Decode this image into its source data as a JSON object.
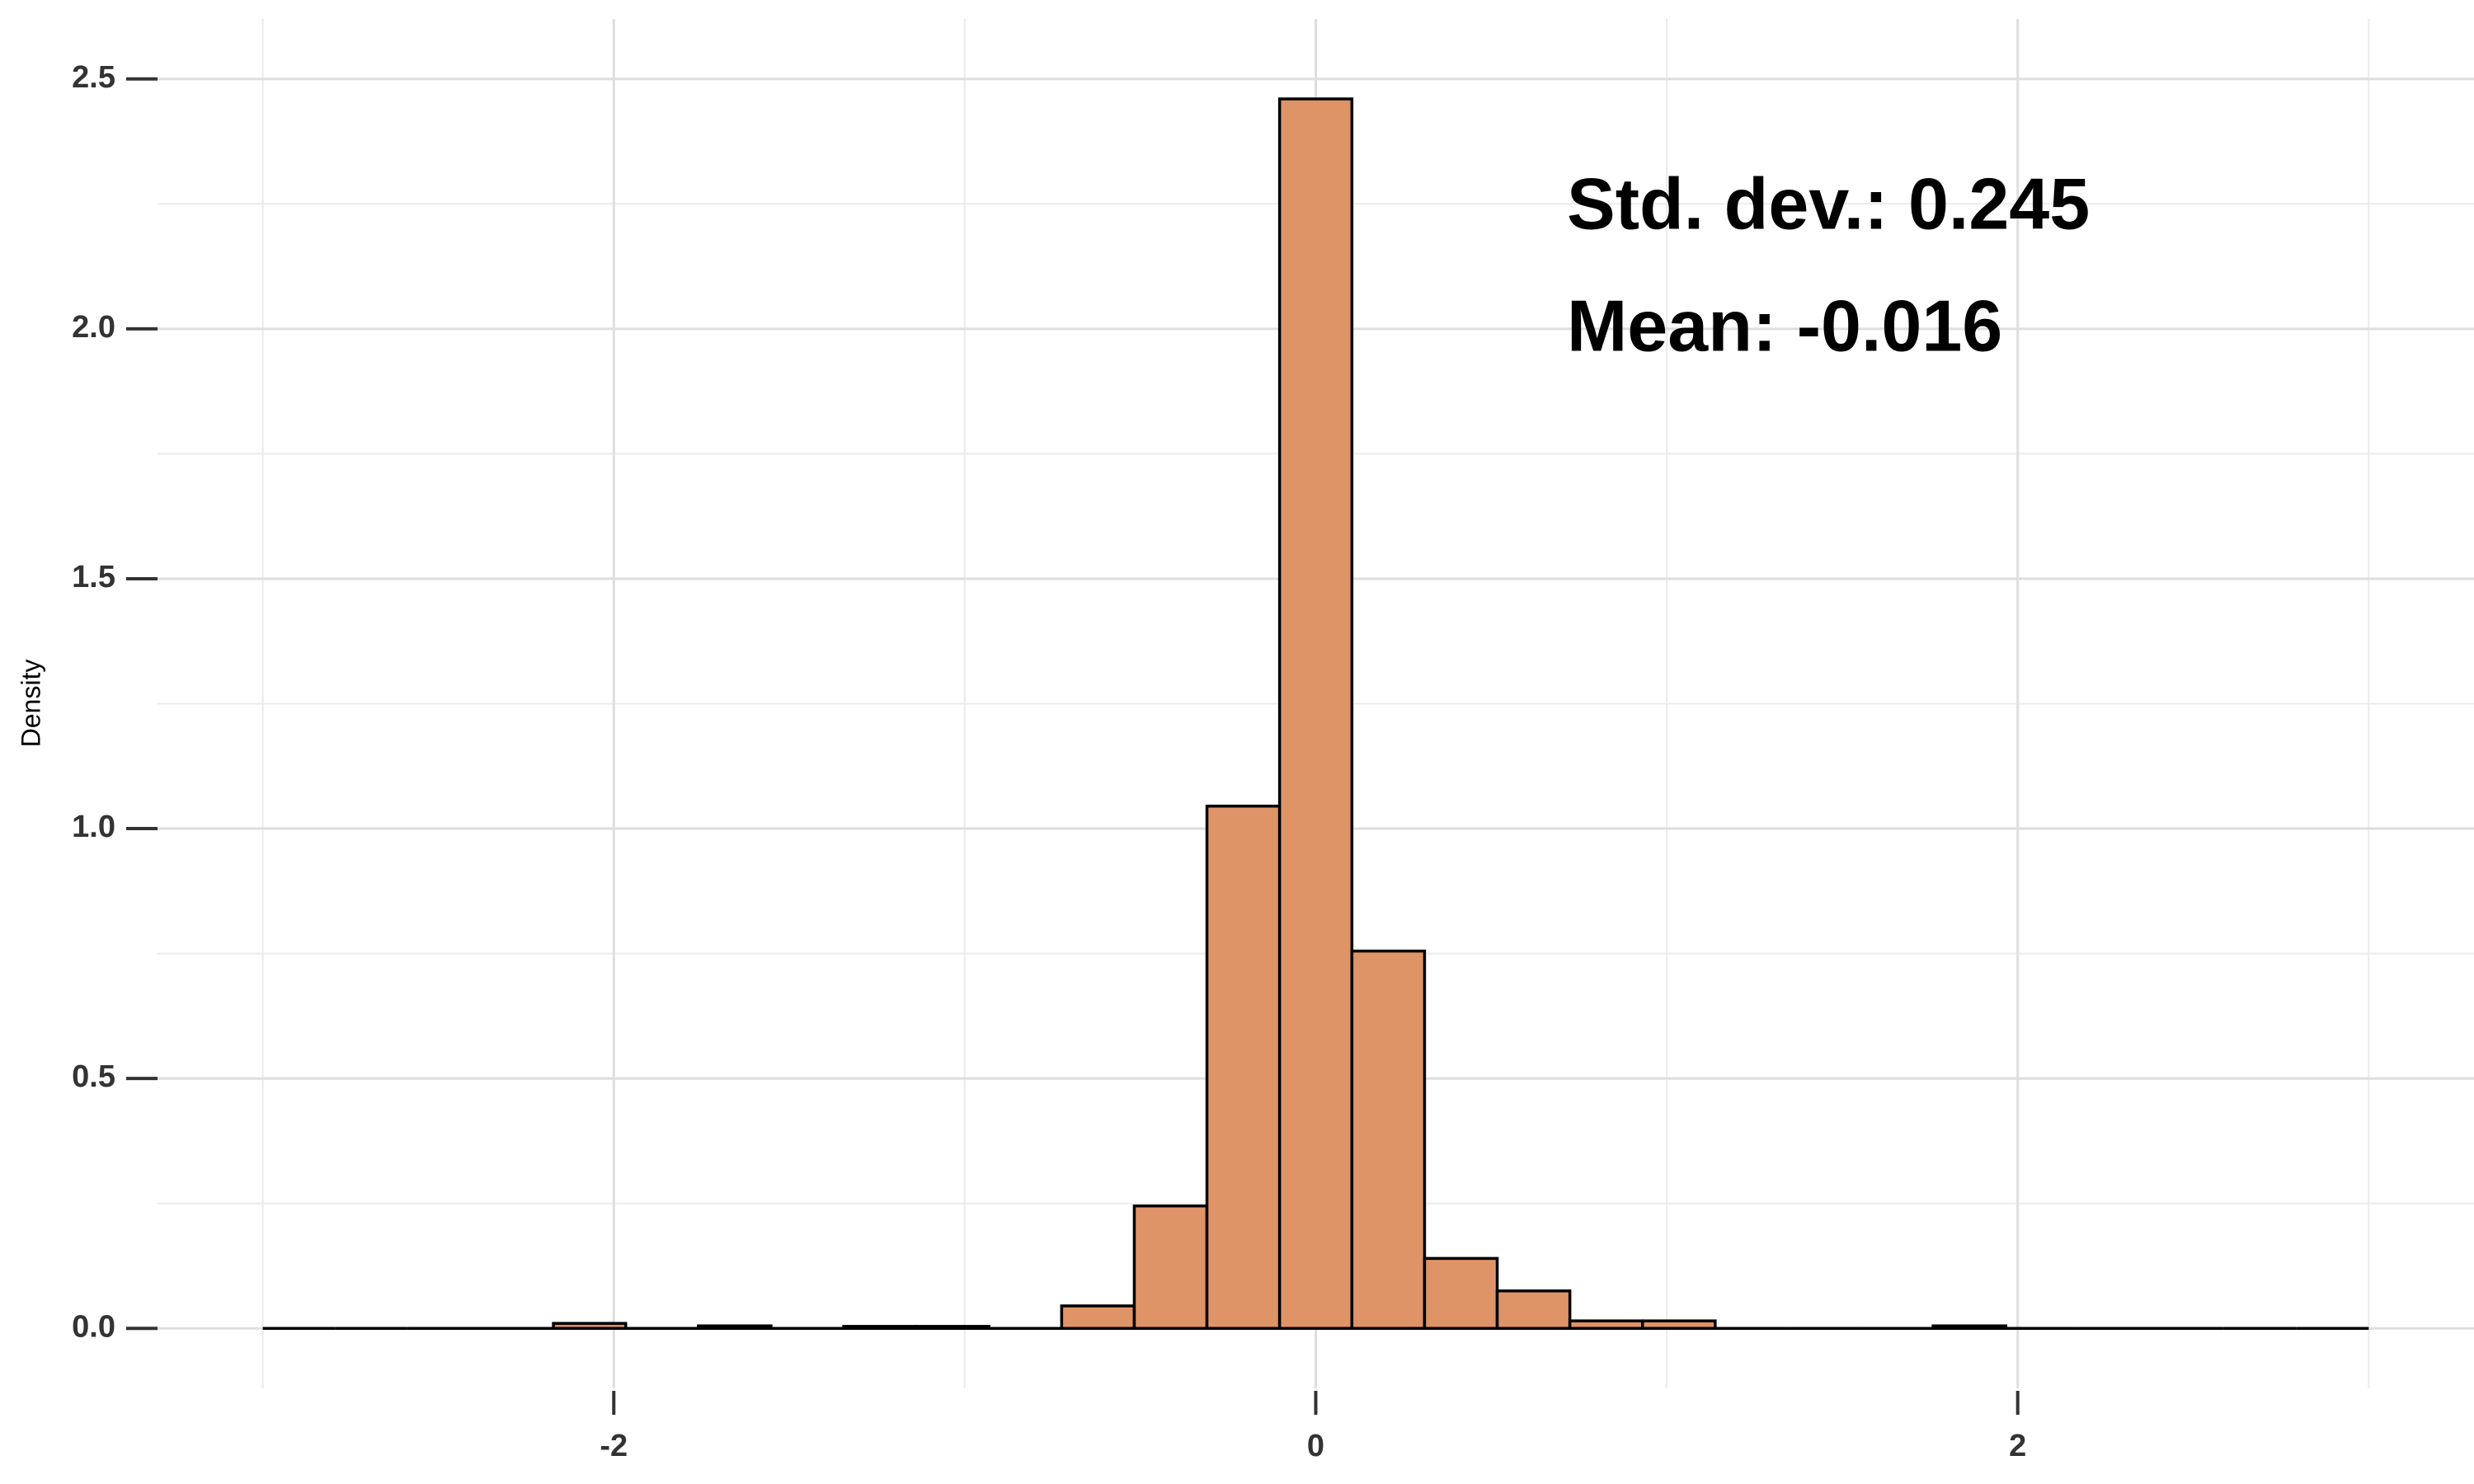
{
  "chart_data": {
    "type": "histogram",
    "y_label": "Density",
    "annotations": [
      "Std. dev.: 0.245",
      "Mean: -0.016"
    ],
    "bins": [
      -3,
      -2.793,
      -2.586,
      -2.379,
      -2.172,
      -1.966,
      -1.759,
      -1.552,
      -1.345,
      -1.138,
      -0.931,
      -0.724,
      -0.517,
      -0.31,
      -0.103,
      0.103,
      0.31,
      0.517,
      0.724,
      0.931,
      1.138,
      1.345,
      1.552,
      1.759,
      1.966,
      2.172,
      2.379,
      2.586,
      2.793,
      3
    ],
    "values": [
      0,
      0,
      0,
      0,
      0.01,
      0,
      0.005,
      0,
      0.004,
      0.004,
      0,
      0.045,
      0.245,
      1.045,
      2.46,
      0.755,
      0.14,
      0.075,
      0.015,
      0.015,
      0,
      0,
      0,
      0.005,
      0,
      0,
      0,
      0,
      0
    ],
    "color": "#df9467",
    "xlim": [
      -3.3,
      3.3
    ],
    "xticks": [
      -2,
      0,
      2
    ],
    "xminor": [
      -3,
      -1,
      1,
      3
    ],
    "ylim": [
      -0.12,
      2.62
    ],
    "yticks": [
      {
        "value": 0,
        "label": "0.0"
      },
      0.5,
      {
        "value": 1,
        "label": "1.0"
      },
      1.5,
      {
        "value": 2,
        "label": "2.0"
      },
      2.5
    ],
    "yminor": [
      0.25,
      0.75,
      1.25,
      1.75,
      2.25
    ],
    "grid": true
  }
}
